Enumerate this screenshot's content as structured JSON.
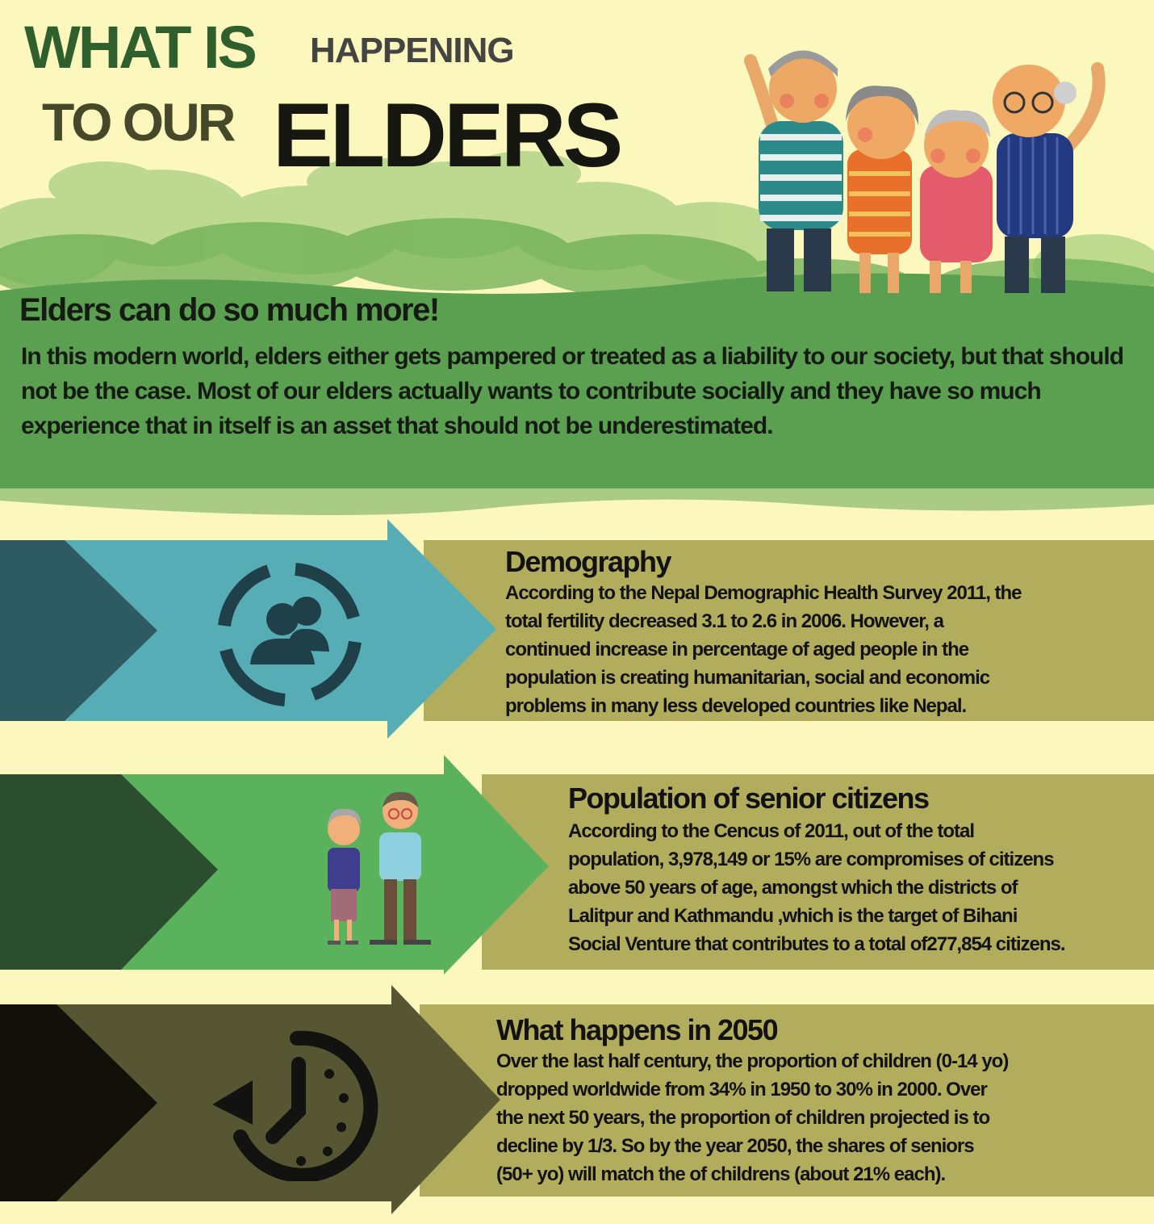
{
  "header": {
    "title_what_is": "WHAT IS",
    "title_happening": "HAPPENING",
    "title_to_our": "TO OUR",
    "title_elders": "ELDERS"
  },
  "intro": {
    "heading": "Elders can do so much more!",
    "body": "In this modern world, elders either gets pampered or treated as a liability to our society, but that should not be the case. Most of our elders actually wants to contribute socially and they have so much experience that in itself is an asset that should not be underestimated."
  },
  "sections": [
    {
      "title": "Demography",
      "lines": [
        "According to the Nepal  Demographic Health Survey 2011, the",
        "total fertility decreased 3.1 to 2.6 in 2006. However, a",
        "continued increase in percentage of aged people in the",
        "population is creating humanitarian, social and economic",
        "problems in many less developed countries like Nepal."
      ],
      "icon": "group-users-icon"
    },
    {
      "title": "Population of senior citizens",
      "lines": [
        "According to the Cencus of 2011, out of the total",
        "population, 3,978,149 or 15% are  compromises of citizens",
        "above 50 years of age, amongst which the districts of",
        "Lalitpur and Kathmandu ,which is the target of Bihani",
        "Social Venture that contributes to a total of277,854 citizens."
      ],
      "icon": "elderly-couple-icon"
    },
    {
      "title": "What happens in 2050",
      "lines": [
        "Over the last half century, the proportion of children (0-14 yo)",
        "dropped worldwide from 34% in 1950  to 30% in 2000. Over",
        "the next 50 years, the proportion of children projected is to",
        "decline by 1/3. So by the year 2050, the shares of seniors",
        "(50+ yo)  will match the of childrens (about 21% each)."
      ],
      "icon": "clock-history-icon"
    }
  ],
  "colors": {
    "background": "#fbf7bd",
    "band_green": "#5aa050",
    "olive_panel": "#b1ad5d",
    "demography_arrow": "#57adb5",
    "population_arrow": "#5bb25d",
    "future_arrow": "#575632"
  }
}
